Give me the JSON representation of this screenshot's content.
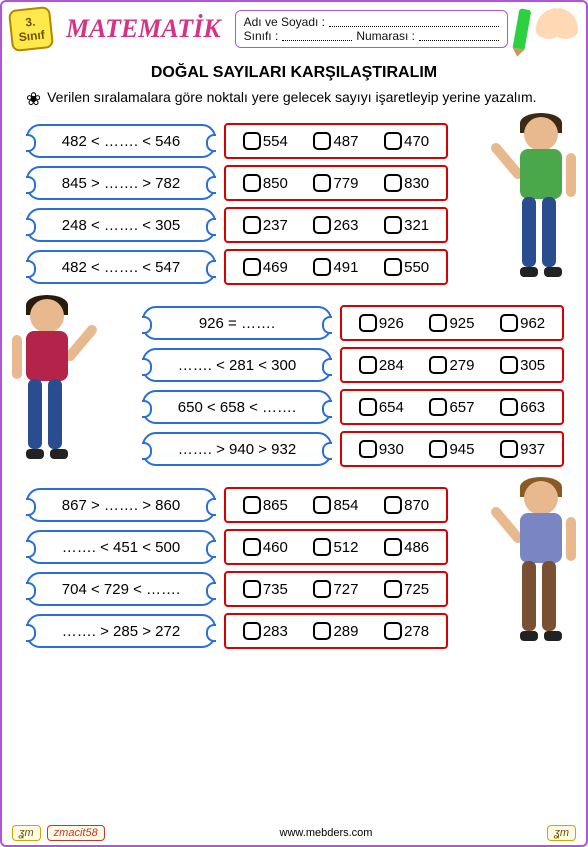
{
  "header": {
    "grade_num": "3.",
    "grade_label": "Sınıf",
    "subject": "MATEMATİK",
    "name_label": "Adı ve Soyadı :",
    "class_label": "Sınıfı :",
    "number_label": "Numarası :"
  },
  "title": "DOĞAL  SAYILARI KARŞILAŞTIRALIM",
  "instruction": "Verilen sıralamalara göre noktalı yere gelecek sayıyı işaretleyip yerine yazalım.",
  "groups": [
    {
      "indent": false,
      "character": {
        "side": "right",
        "hair": "#3a2a12",
        "shirt": "#4aa84a",
        "pants": "#2a4d8f"
      },
      "rows": [
        {
          "q": "482 < ……. < 546",
          "opts": [
            "554",
            "487",
            "470"
          ]
        },
        {
          "q": "845 > ……. > 782",
          "opts": [
            "850",
            "779",
            "830"
          ]
        },
        {
          "q": "248 < ……. < 305",
          "opts": [
            "237",
            "263",
            "321"
          ]
        },
        {
          "q": "482 < ……. < 547",
          "opts": [
            "469",
            "491",
            "550"
          ]
        }
      ]
    },
    {
      "indent": true,
      "character": {
        "side": "left",
        "hair": "#2a1a0a",
        "shirt": "#b3234a",
        "pants": "#2a4d8f"
      },
      "rows": [
        {
          "q": "926 = …….",
          "opts": [
            "926",
            "925",
            "962"
          ]
        },
        {
          "q": "……. < 281 < 300",
          "opts": [
            "284",
            "279",
            "305"
          ]
        },
        {
          "q": "650 < 658 < …….",
          "opts": [
            "654",
            "657",
            "663"
          ]
        },
        {
          "q": "……. > 940 > 932",
          "opts": [
            "930",
            "945",
            "937"
          ]
        }
      ]
    },
    {
      "indent": false,
      "character": {
        "side": "right",
        "hair": "#8a5a24",
        "shirt": "#7a86c4",
        "pants": "#7a5032"
      },
      "rows": [
        {
          "q": "867 > ……. > 860",
          "opts": [
            "865",
            "854",
            "870"
          ]
        },
        {
          "q": "……. < 451 < 500",
          "opts": [
            "460",
            "512",
            "486"
          ]
        },
        {
          "q": "704 < 729 < …….",
          "opts": [
            "735",
            "727",
            "725"
          ]
        },
        {
          "q": "……. > 285 > 272",
          "opts": [
            "283",
            "289",
            "278"
          ]
        }
      ]
    }
  ],
  "footer": {
    "left_badge": "ʓm",
    "author": "zmacit58",
    "site": "www.mebders.com",
    "right_badge": "ʓm"
  }
}
